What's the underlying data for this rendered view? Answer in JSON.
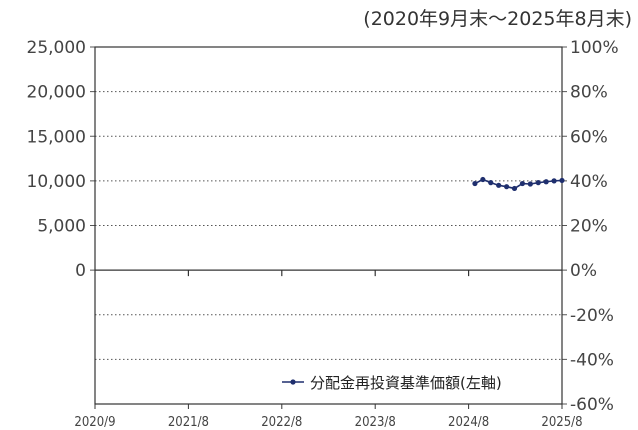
{
  "chart_data": {
    "type": "line",
    "period_note": "(2020年9月末～2025年8月末)",
    "left_axis": {
      "ticks": [
        "25,000",
        "20,000",
        "15,000",
        "10,000",
        "5,000",
        "0"
      ],
      "range": [
        0,
        25000
      ]
    },
    "right_axis": {
      "ticks": [
        "100%",
        "80%",
        "60%",
        "40%",
        "20%",
        "0%",
        "-20%",
        "-40%",
        "-60%"
      ],
      "range": [
        -60,
        100
      ]
    },
    "x_ticks": [
      "2020/9",
      "2021/8",
      "2022/8",
      "2023/8",
      "2024/8",
      "2025/8"
    ],
    "grid": true,
    "legend_position": "bottom-right",
    "series": [
      {
        "name": "分配金再投資基準価額(左軸)",
        "axis": "left",
        "color": "#1f2f6e",
        "x": [
          "2024/9",
          "2024/10",
          "2024/11",
          "2024/12",
          "2025/1",
          "2025/2",
          "2025/3",
          "2025/4",
          "2025/5",
          "2025/6",
          "2025/7",
          "2025/8"
        ],
        "values": [
          9700,
          10150,
          9800,
          9500,
          9350,
          9150,
          9700,
          9650,
          9800,
          9900,
          10000,
          10050
        ]
      }
    ]
  }
}
